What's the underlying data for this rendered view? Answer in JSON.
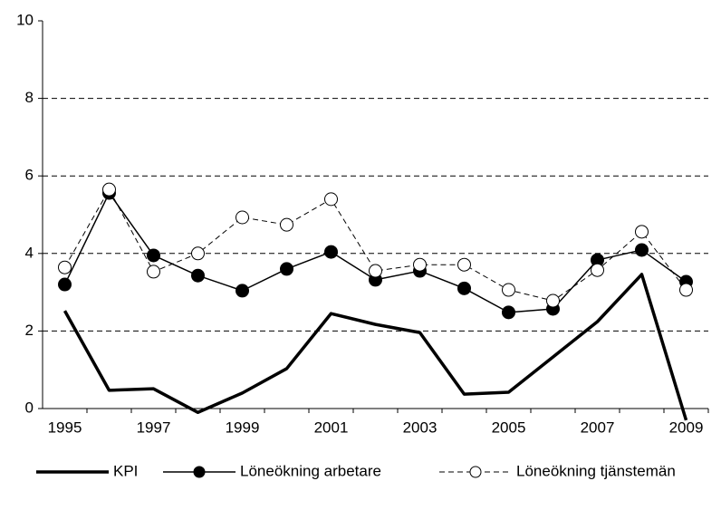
{
  "chart_data": {
    "type": "line",
    "categories": [
      "1995",
      null,
      "1997",
      null,
      "1999",
      null,
      "2001",
      null,
      "2003",
      null,
      "2005",
      null,
      "2007",
      null,
      "2009"
    ],
    "ylim": [
      0,
      10
    ],
    "yticks": [
      0,
      2,
      4,
      6,
      8,
      10
    ],
    "grid": true,
    "legend": "bottom",
    "series": [
      {
        "name": "KPI",
        "color": "#000000",
        "style": "thick",
        "values": [
          2.52,
          0.47,
          0.51,
          -0.1,
          0.4,
          1.03,
          2.45,
          2.17,
          1.96,
          0.37,
          0.42,
          1.33,
          2.24,
          3.46,
          -0.3
        ]
      },
      {
        "name": "Löneökning arbetare",
        "color": "#000000",
        "style": "solid-filled",
        "values": [
          3.2,
          5.56,
          3.95,
          3.43,
          3.04,
          3.6,
          4.04,
          3.32,
          3.55,
          3.1,
          2.48,
          2.57,
          3.83,
          4.09,
          3.27
        ]
      },
      {
        "name": "Löneökning tjänstemän",
        "color": "#000000",
        "style": "dashed-open",
        "values": [
          3.64,
          5.65,
          3.53,
          4.0,
          4.93,
          4.74,
          5.4,
          3.55,
          3.71,
          3.71,
          3.06,
          2.78,
          3.57,
          4.56,
          3.06
        ]
      }
    ]
  }
}
